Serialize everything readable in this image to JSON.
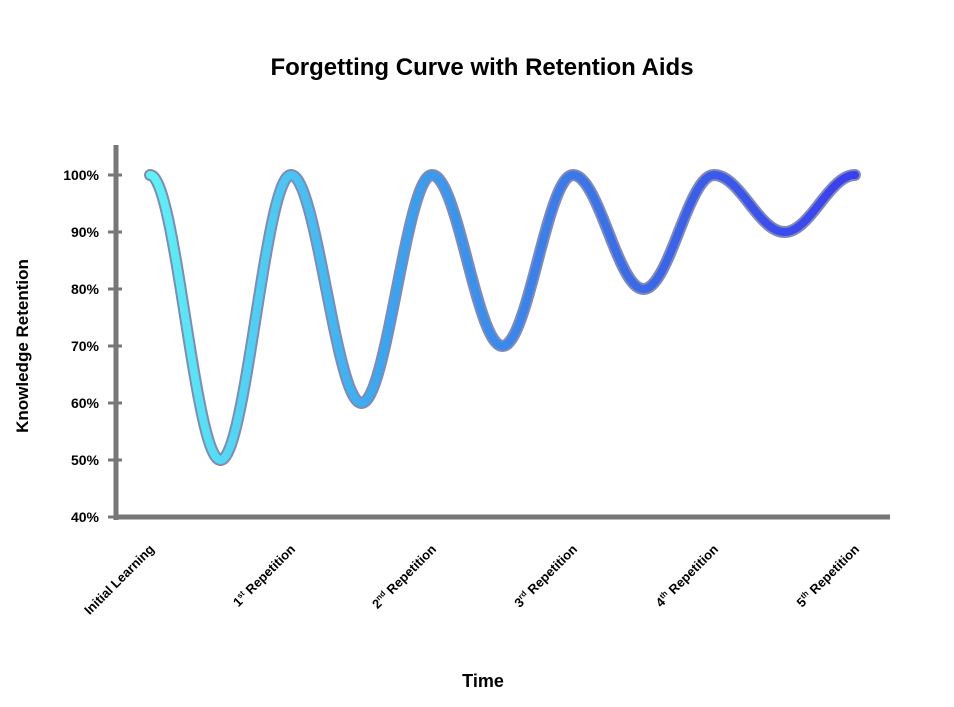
{
  "chart_data": {
    "type": "line",
    "title": "Forgetting Curve with Retention Aids",
    "xlabel": "Time",
    "ylabel": "Knowledge Retention",
    "ylim": [
      40,
      100
    ],
    "y_ticks": [
      "40%",
      "50%",
      "60%",
      "70%",
      "80%",
      "90%",
      "100%"
    ],
    "x_ticks": [
      {
        "base": "Initial Learning",
        "sup": "",
        "rest": ""
      },
      {
        "base": "1",
        "sup": "st",
        "rest": " Repetition"
      },
      {
        "base": "2",
        "sup": "nd",
        "rest": " Repetition"
      },
      {
        "base": "3",
        "sup": "rd",
        "rest": " Repetition"
      },
      {
        "base": "4",
        "sup": "th",
        "rest": " Repetition"
      },
      {
        "base": "5",
        "sup": "th",
        "rest": " Repetition"
      }
    ],
    "series": [
      {
        "x": [
          0,
          0.5,
          1,
          1.5,
          2,
          2.5,
          3,
          3.5,
          4,
          4.5,
          5
        ],
        "y": [
          100,
          50,
          100,
          60,
          100,
          70,
          100,
          80,
          100,
          90,
          100
        ]
      }
    ],
    "line_gradient": [
      "#5ef2f5",
      "#3aa6f0",
      "#3a6ee8",
      "#3b3ef0"
    ],
    "axis_color": "#777777",
    "grid": false
  }
}
